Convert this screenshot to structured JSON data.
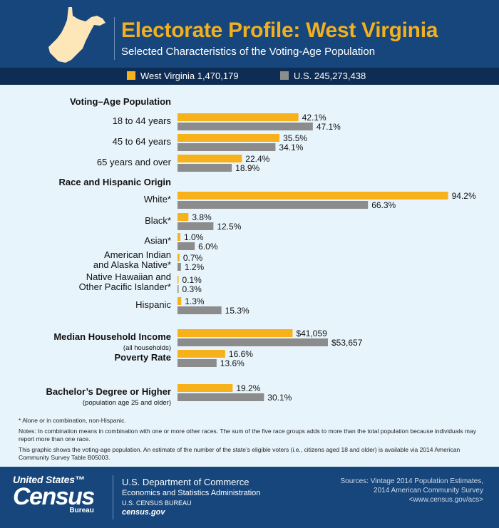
{
  "header": {
    "title": "Electorate Profile: West Virginia",
    "subtitle": "Selected Characteristics of the Voting-Age Population"
  },
  "legend": {
    "items": [
      {
        "label": "West Virginia 1,470,179",
        "color": "#f7b21b"
      },
      {
        "label": "U.S. 245,273,438",
        "color": "#8c8c8c"
      }
    ]
  },
  "chart_data": {
    "type": "bar",
    "orientation": "horizontal",
    "series": [
      {
        "name": "West Virginia 1,470,179",
        "color": "#f7b21b"
      },
      {
        "name": "U.S. 245,273,438",
        "color": "#8c8c8c"
      }
    ],
    "sections": [
      {
        "heading": "Voting–Age Population",
        "unit": "percent",
        "rows": [
          {
            "label": "18 to 44 years",
            "values": [
              42.1,
              47.1
            ],
            "labels": [
              "42.1%",
              "47.1%"
            ]
          },
          {
            "label": "45 to 64 years",
            "values": [
              35.5,
              34.1
            ],
            "labels": [
              "35.5%",
              "34.1%"
            ]
          },
          {
            "label": "65 years and over",
            "values": [
              22.4,
              18.9
            ],
            "labels": [
              "22.4%",
              "18.9%"
            ]
          }
        ]
      },
      {
        "heading": "Race and Hispanic Origin",
        "unit": "percent",
        "rows": [
          {
            "label": "White*",
            "values": [
              94.2,
              66.3
            ],
            "labels": [
              "94.2%",
              "66.3%"
            ]
          },
          {
            "label": "Black*",
            "values": [
              3.8,
              12.5
            ],
            "labels": [
              "3.8%",
              "12.5%"
            ]
          },
          {
            "label": "Asian*",
            "values": [
              1.0,
              6.0
            ],
            "labels": [
              "1.0%",
              "6.0%"
            ]
          },
          {
            "label": "American Indian|and Alaska Native*",
            "values": [
              0.7,
              1.2
            ],
            "labels": [
              "0.7%",
              "1.2%"
            ]
          },
          {
            "label": "Native Hawaiian and|Other Pacific Islander*",
            "values": [
              0.1,
              0.3
            ],
            "labels": [
              "0.1%",
              "0.3%"
            ]
          },
          {
            "label": "Hispanic",
            "values": [
              1.3,
              15.3
            ],
            "labels": [
              "1.3%",
              "15.3%"
            ]
          }
        ]
      },
      {
        "heading": "",
        "unit": "dollars",
        "rows": [
          {
            "label": "Median Household Income",
            "sublabel": "(all households)",
            "values": [
              41059,
              53657
            ],
            "labels": [
              "$41,059",
              "$53,657"
            ]
          }
        ]
      },
      {
        "heading": "",
        "unit": "percent",
        "rows": [
          {
            "label": "Poverty Rate",
            "values": [
              16.6,
              13.6
            ],
            "labels": [
              "16.6%",
              "13.6%"
            ]
          }
        ]
      },
      {
        "heading": "",
        "unit": "percent",
        "rows": [
          {
            "label": "Bachelor’s Degree or Higher",
            "sublabel": "(population age 25 and older)",
            "values": [
              19.2,
              30.1
            ],
            "labels": [
              "19.2%",
              "30.1%"
            ]
          }
        ]
      }
    ]
  },
  "footnotes": {
    "asterisk": "* Alone or in combination, non-Hispanic.",
    "notes": "Notes: In combination means in combination with one or more other races. The sum of the five race groups adds to more than the total population because individuals may report more than one race.",
    "graphic": "This graphic shows the voting-age population. An estimate of the number of the state’s eligible voters (i.e., citizens aged 18 and older) is available via 2014 American Community Survey Table B05003."
  },
  "footer": {
    "logo_top": "United States™",
    "logo_main": "Census",
    "logo_bottom": "Bureau",
    "dept_name": "U.S. Department of Commerce",
    "dept_sub1": "Economics and Statistics Administration",
    "dept_sub2": "U.S. CENSUS BUREAU",
    "dept_url": "census.gov",
    "sources_line1": "Sources: Vintage 2014 Population Estimates,",
    "sources_line2": "2014 American Community Survey",
    "sources_line3": "<www.census.gov/acs>"
  }
}
